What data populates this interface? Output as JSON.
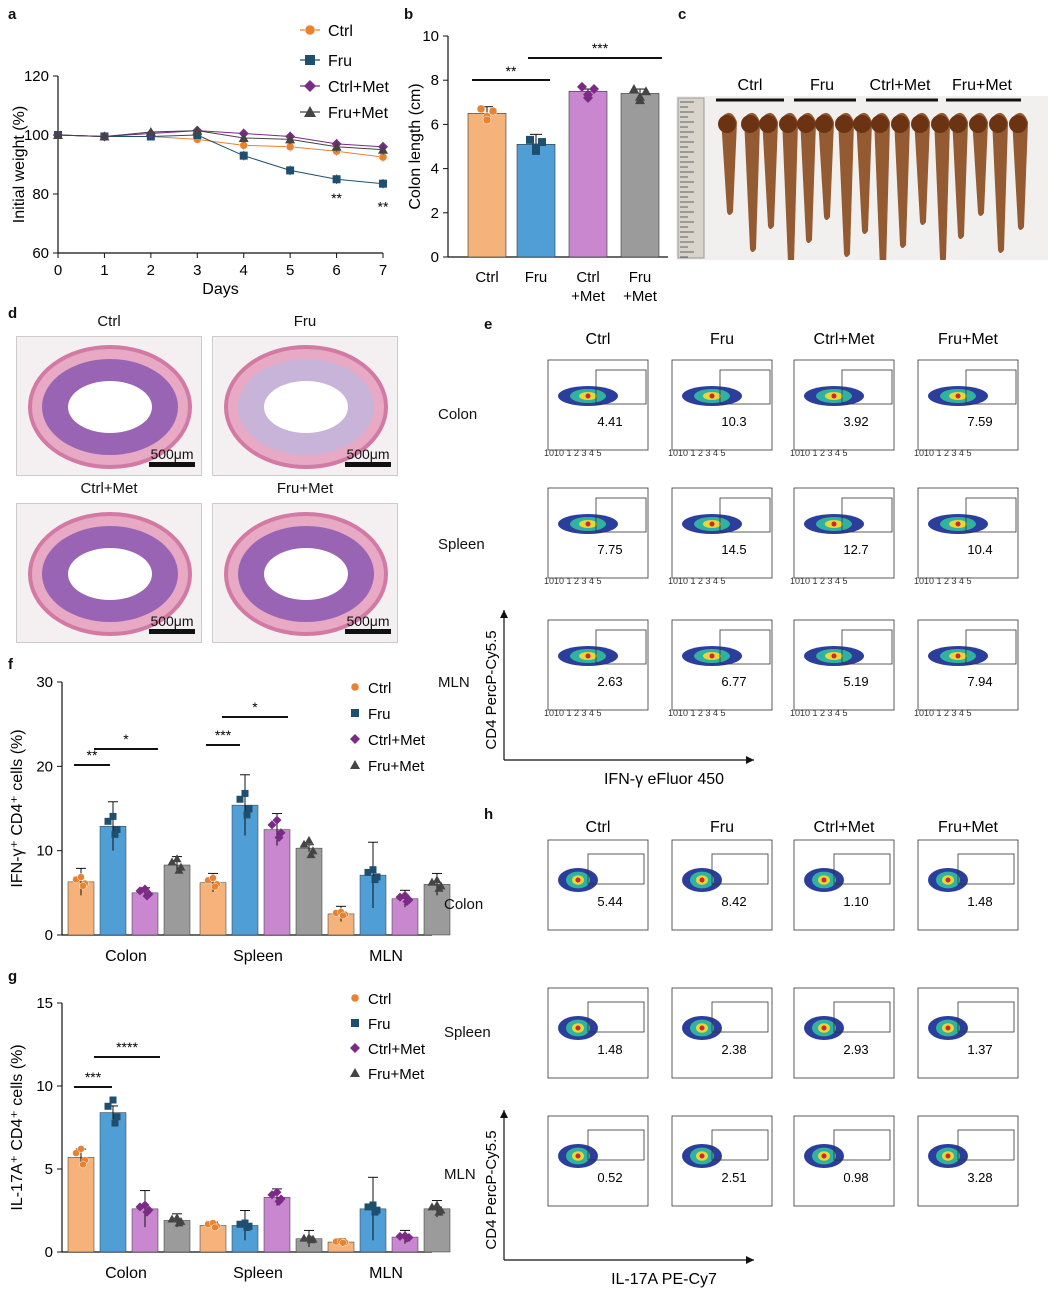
{
  "panels": {
    "a": "a",
    "b": "b",
    "c": "c",
    "d": "d",
    "e": "e",
    "f": "f",
    "g": "g",
    "h": "h"
  },
  "colors": {
    "ctrl": "#f5b27a",
    "ctrl_dark": "#e8822f",
    "fru": "#4f9fd6",
    "fru_dark": "#1f4f6e",
    "ctrl_met": "#c987cf",
    "ctrl_met_dark": "#7b2a86",
    "fru_met": "#9b9b9b",
    "fru_met_dark": "#444444"
  },
  "groups": [
    "Ctrl",
    "Fru",
    "Ctrl+Met",
    "Fru+Met"
  ],
  "panel_a": {
    "ylabel": "Initial weight (%)",
    "xlabel": "Days",
    "sig_day6": "**",
    "sig_day7": "**"
  },
  "panel_b": {
    "ylabel": "Colon length (cm)",
    "categories_line1": [
      "Ctrl",
      "Fru",
      "Ctrl",
      "Fru"
    ],
    "categories_line2": [
      "",
      "",
      "+Met",
      "+Met"
    ],
    "sig1": "**",
    "sig2": "***"
  },
  "panel_c": {
    "labels": [
      "Ctrl",
      "Fru",
      "Ctrl+Met",
      "Fru+Met"
    ]
  },
  "panel_d": {
    "titles": [
      "Ctrl",
      "Fru",
      "Ctrl+Met",
      "Fru+Met"
    ],
    "scale": "500μm"
  },
  "panel_e": {
    "cols": [
      "Ctrl",
      "Fru",
      "Ctrl+Met",
      "Fru+Met"
    ],
    "rows": [
      "Colon",
      "Spleen",
      "MLN"
    ],
    "values": [
      [
        "4.41",
        "10.3",
        "3.92",
        "7.59"
      ],
      [
        "7.75",
        "14.5",
        "12.7",
        "10.4"
      ],
      [
        "2.63",
        "6.77",
        "5.19",
        "7.94"
      ]
    ],
    "xlabel": "IFN-γ eFluor 450",
    "ylabel": "CD4 PercP-Cy5.5"
  },
  "panel_f": {
    "ylabel": "IFN-γ⁺ CD4⁺ cells (%)",
    "tissues": [
      "Colon",
      "Spleen",
      "MLN"
    ],
    "sigs": [
      "**",
      "*",
      "***",
      "*"
    ]
  },
  "panel_g": {
    "ylabel": "IL-17A⁺ CD4⁺ cells (%)",
    "tissues": [
      "Colon",
      "Spleen",
      "MLN"
    ],
    "sigs": [
      "***",
      "****"
    ]
  },
  "panel_h": {
    "cols": [
      "Ctrl",
      "Fru",
      "Ctrl+Met",
      "Fru+Met"
    ],
    "rows": [
      "Colon",
      "Spleen",
      "MLN"
    ],
    "values": [
      [
        "5.44",
        "8.42",
        "1.10",
        "1.48"
      ],
      [
        "1.48",
        "2.38",
        "2.93",
        "1.37"
      ],
      [
        "0.52",
        "2.51",
        "0.98",
        "3.28"
      ]
    ],
    "xlabel": "IL-17A PE-Cy7",
    "ylabel": "CD4 PercP-Cy5.5"
  },
  "chart_data": [
    {
      "id": "a",
      "type": "line",
      "title": "",
      "xlabel": "Days",
      "ylabel": "Initial weight (%)",
      "x": [
        0,
        1,
        2,
        3,
        4,
        5,
        6,
        7
      ],
      "xlim": [
        0,
        7
      ],
      "ylim": [
        60,
        120
      ],
      "yticks": [
        60,
        80,
        100,
        120
      ],
      "series": [
        {
          "name": "Ctrl",
          "values": [
            100,
            99.5,
            99.5,
            98.5,
            96.5,
            96,
            94.5,
            92.5
          ]
        },
        {
          "name": "Fru",
          "values": [
            100,
            99.5,
            99.5,
            100,
            93,
            88,
            85,
            83.5
          ]
        },
        {
          "name": "Ctrl+Met",
          "values": [
            100,
            99.5,
            100.5,
            101.5,
            100.5,
            99.5,
            97,
            96
          ]
        },
        {
          "name": "Fru+Met",
          "values": [
            100,
            99.5,
            101,
            101.5,
            99,
            98.5,
            96,
            95
          ]
        }
      ],
      "legend": "top-right"
    },
    {
      "id": "b",
      "type": "bar",
      "title": "",
      "ylabel": "Colon length (cm)",
      "categories": [
        "Ctrl",
        "Fru",
        "Ctrl+Met",
        "Fru+Met"
      ],
      "values": [
        6.5,
        5.1,
        7.5,
        7.4
      ],
      "errors": [
        0.3,
        0.45,
        0.1,
        0.2
      ],
      "ylim": [
        0,
        10
      ],
      "yticks": [
        0,
        2,
        4,
        6,
        8,
        10
      ]
    },
    {
      "id": "f",
      "type": "bar",
      "title": "",
      "ylabel": "IFN-γ⁺ CD4⁺ cells (%)",
      "categories": [
        "Colon",
        "Spleen",
        "MLN"
      ],
      "ylim": [
        0,
        30
      ],
      "yticks": [
        0,
        10,
        20,
        30
      ],
      "series": [
        {
          "name": "Ctrl",
          "values": [
            6.3,
            6.2,
            2.5
          ],
          "errors": [
            1.6,
            1.1,
            0.9
          ]
        },
        {
          "name": "Fru",
          "values": [
            12.9,
            15.4,
            7.1
          ],
          "errors": [
            2.9,
            3.6,
            3.9
          ]
        },
        {
          "name": "Ctrl+Met",
          "values": [
            5.0,
            12.5,
            4.3
          ],
          "errors": [
            0.6,
            1.9,
            1.0
          ]
        },
        {
          "name": "Fru+Met",
          "values": [
            8.3,
            10.3,
            6.0
          ],
          "errors": [
            1.0,
            0.4,
            1.3
          ]
        }
      ],
      "legend": "top-right"
    },
    {
      "id": "g",
      "type": "bar",
      "title": "",
      "ylabel": "IL-17A⁺ CD4⁺ cells (%)",
      "categories": [
        "Colon",
        "Spleen",
        "MLN"
      ],
      "ylim": [
        0,
        15
      ],
      "yticks": [
        0,
        5,
        10,
        15
      ],
      "series": [
        {
          "name": "Ctrl",
          "values": [
            5.7,
            1.6,
            0.6
          ],
          "errors": [
            0.5,
            0.2,
            0.2
          ]
        },
        {
          "name": "Fru",
          "values": [
            8.4,
            1.6,
            2.6
          ],
          "errors": [
            0.4,
            0.9,
            1.9
          ]
        },
        {
          "name": "Ctrl+Met",
          "values": [
            2.6,
            3.3,
            0.9
          ],
          "errors": [
            1.1,
            0.5,
            0.4
          ]
        },
        {
          "name": "Fru+Met",
          "values": [
            1.9,
            0.8,
            2.6
          ],
          "errors": [
            0.4,
            0.5,
            0.5
          ]
        }
      ],
      "legend": "top-right"
    }
  ]
}
